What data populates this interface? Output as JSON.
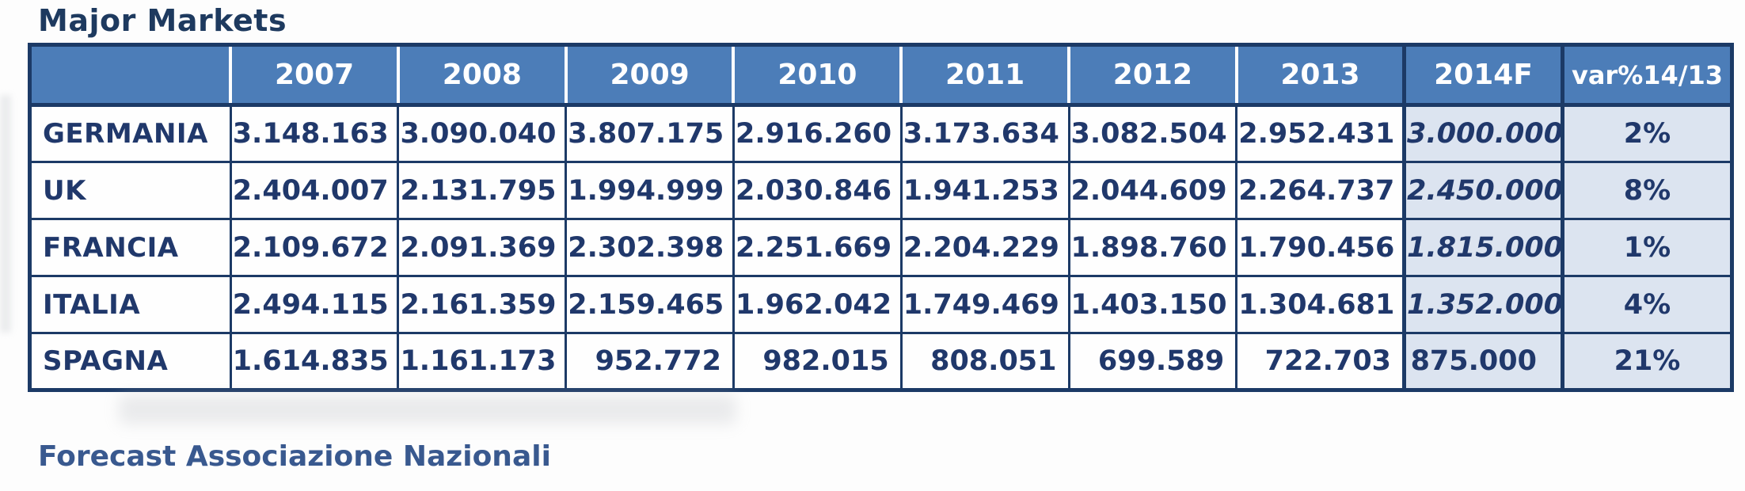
{
  "title": "Major Markets",
  "footer_note": "Forecast Associazione Nazionali",
  "colors": {
    "header_bg": "#4c7db8",
    "header_text": "#ffffff",
    "border_navy": "#1c3a66",
    "body_text_navy": "#20386b",
    "forecast_cell_bg": "#dce4f0",
    "title_text": "#1e3a5f",
    "footer_text": "#39598f"
  },
  "chart_data": {
    "type": "table",
    "title": "Major Markets",
    "columns": [
      "",
      "2007",
      "2008",
      "2009",
      "2010",
      "2011",
      "2012",
      "2013",
      "2014F",
      "var%14/13"
    ],
    "rows": [
      {
        "label": "GERMANIA",
        "values": [
          "3.148.163",
          "3.090.040",
          "3.807.175",
          "2.916.260",
          "3.173.634",
          "3.082.504",
          "2.952.431",
          "3.000.000",
          "2%"
        ]
      },
      {
        "label": "UK",
        "values": [
          "2.404.007",
          "2.131.795",
          "1.994.999",
          "2.030.846",
          "1.941.253",
          "2.044.609",
          "2.264.737",
          "2.450.000",
          "8%"
        ]
      },
      {
        "label": "FRANCIA",
        "values": [
          "2.109.672",
          "2.091.369",
          "2.302.398",
          "2.251.669",
          "2.204.229",
          "1.898.760",
          "1.790.456",
          "1.815.000",
          "1%"
        ]
      },
      {
        "label": "ITALIA",
        "values": [
          "2.494.115",
          "2.161.359",
          "2.159.465",
          "1.962.042",
          "1.749.469",
          "1.403.150",
          "1.304.681",
          "1.352.000",
          "4%"
        ]
      },
      {
        "label": "SPAGNA",
        "values": [
          "1.614.835",
          "1.161.173",
          "952.772",
          "982.015",
          "808.051",
          "699.589",
          "722.703",
          "875.000",
          "21%"
        ]
      }
    ],
    "layout": {
      "forecast_column": "2014F",
      "forecast_values_italic": true,
      "grid": "heavy navy borders",
      "legend": "none"
    }
  }
}
